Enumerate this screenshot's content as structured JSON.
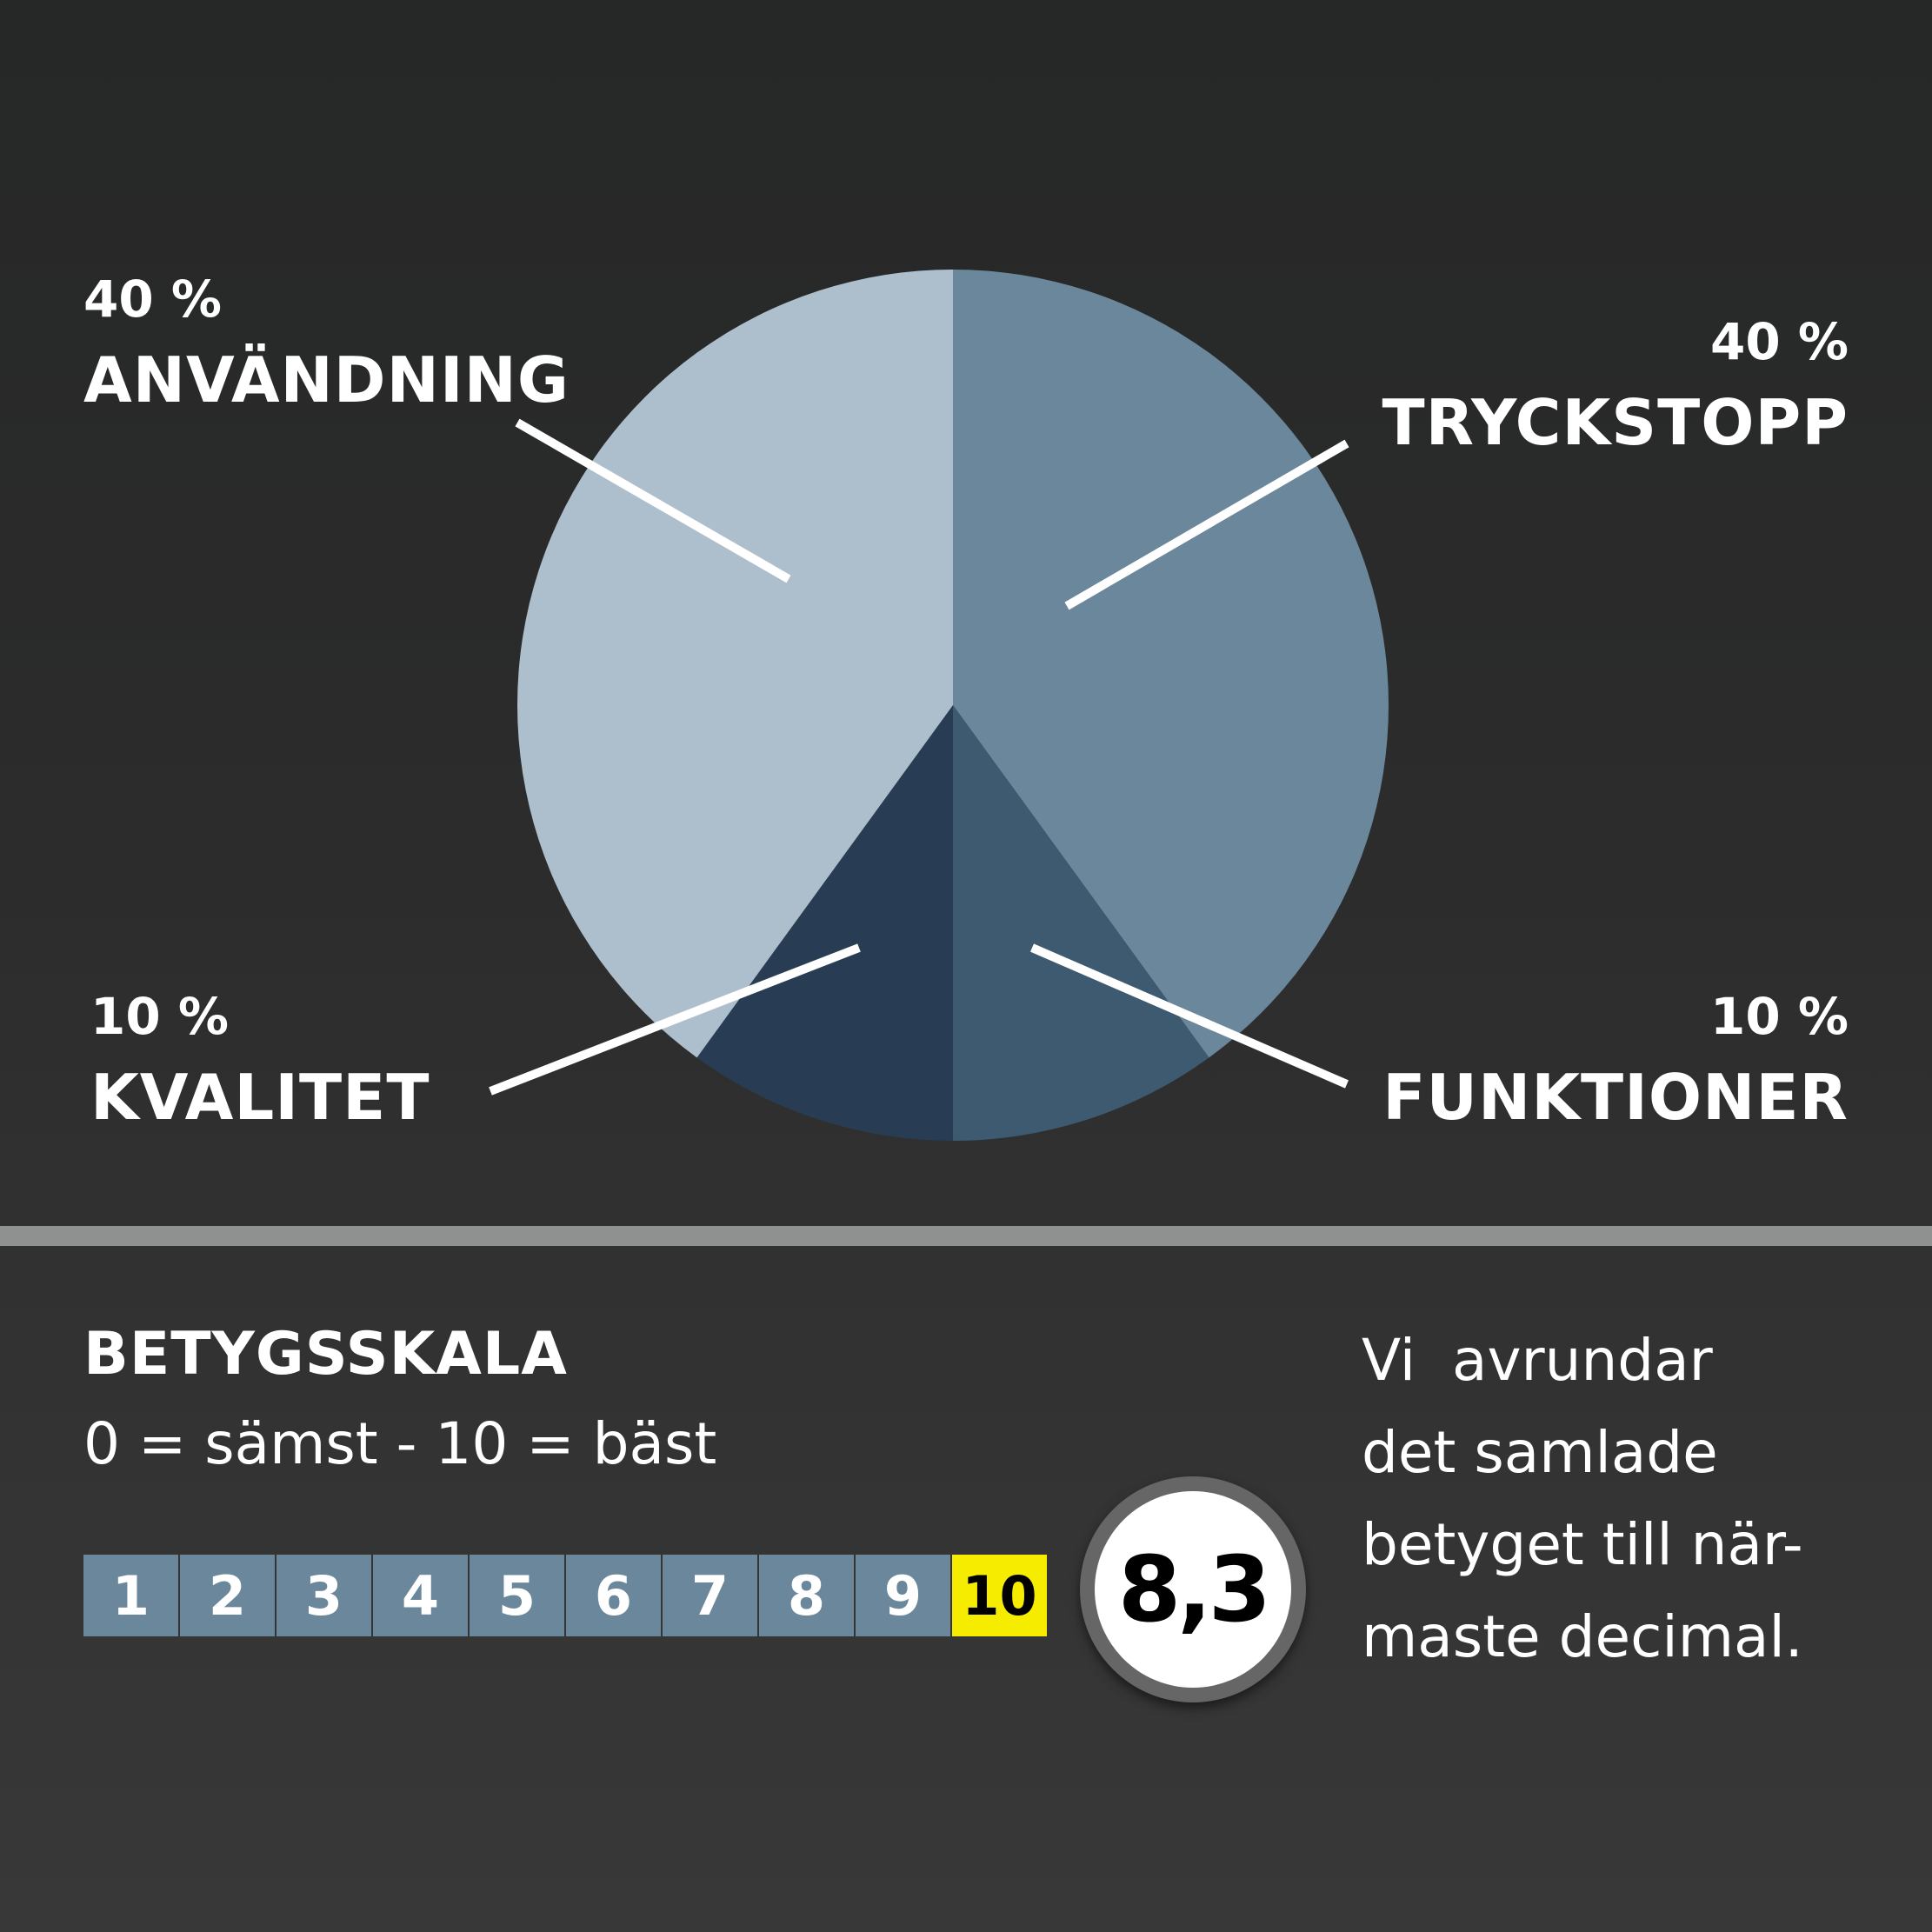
{
  "chart_data": {
    "type": "pie",
    "slices": [
      {
        "label": "TRYCKSTOPP",
        "value": 40,
        "value_label": "40 %",
        "color": "#6b879b"
      },
      {
        "label": "FUNKTIONER",
        "value": 10,
        "value_label": "10 %",
        "color": "#3d5a70"
      },
      {
        "label": "KVALITET",
        "value": 10,
        "value_label": "10 %",
        "color": "#283d54"
      },
      {
        "label": "ANVÄNDNING",
        "value": 40,
        "value_label": "40 %",
        "color": "#adbfcd"
      }
    ],
    "start": "12 o'clock, clockwise",
    "legend": "callout labels with leader lines"
  },
  "scale": {
    "title": "BETYGSSKALA",
    "subtitle": "0 = sämst - 10 = bäst",
    "steps": [
      "1",
      "2",
      "3",
      "4",
      "5",
      "6",
      "7",
      "8",
      "9",
      "10"
    ],
    "highlighted": "10",
    "highlight_color": "#f6ec00",
    "cell_color": "#6b879b"
  },
  "score": "8,3",
  "note": [
    "Vi  avrundar",
    "det samlade",
    "betyget till när-",
    "maste decimal."
  ]
}
